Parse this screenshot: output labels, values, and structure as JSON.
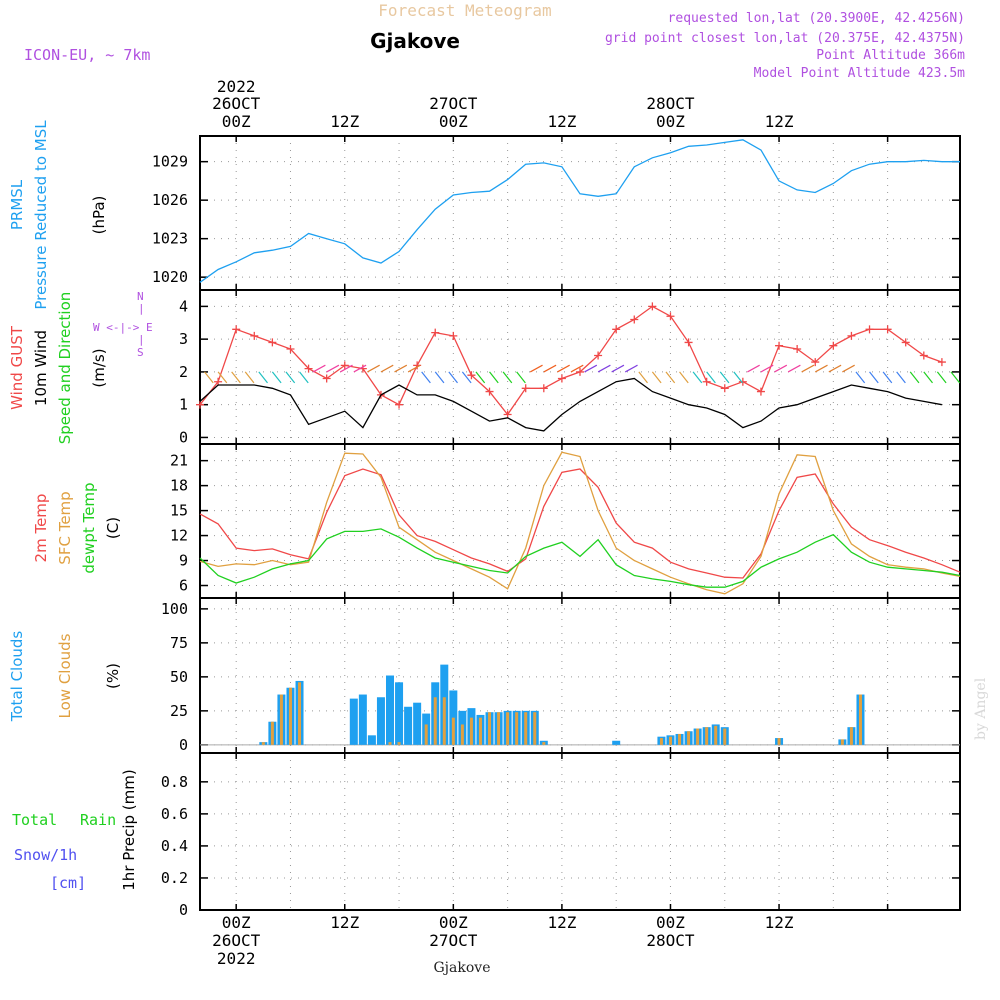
{
  "header": {
    "title": "Forecast Meteogram",
    "location": "Gjakove",
    "model": "ICON-EU, ~ 7km",
    "requested": "requested lon,lat (20.3900E, 42.4256N)",
    "grid_point": "grid point closest lon,lat (20.375E, 42.4375N)",
    "point_altitude": "Point Altitude 366m",
    "model_altitude": "Model Point Altitude 423.5m"
  },
  "time_axis": {
    "top_labels": [
      {
        "line1": "2022",
        "line2": "26OCT",
        "line3": "00Z"
      },
      {
        "line1": "",
        "line2": "",
        "line3": "12Z"
      },
      {
        "line1": "",
        "line2": "27OCT",
        "line3": "00Z"
      },
      {
        "line1": "",
        "line2": "",
        "line3": "12Z"
      },
      {
        "line1": "",
        "line2": "28OCT",
        "line3": "00Z"
      },
      {
        "line1": "",
        "line2": "",
        "line3": "12Z"
      }
    ],
    "bottom_labels": [
      {
        "line1": "00Z",
        "line2": "26OCT",
        "line3": "2022"
      },
      {
        "line1": "12Z",
        "line2": "",
        "line3": ""
      },
      {
        "line1": "00Z",
        "line2": "27OCT",
        "line3": ""
      },
      {
        "line1": "12Z",
        "line2": "",
        "line3": ""
      },
      {
        "line1": "00Z",
        "line2": "28OCT",
        "line3": ""
      },
      {
        "line1": "12Z",
        "line2": "",
        "line3": ""
      }
    ],
    "footer": "Gjakove",
    "credit": "by Angel"
  },
  "panels": {
    "pressure": {
      "labels": [
        "PRMSL",
        "Pressure Reduced to MSL"
      ],
      "unit": "(hPa)",
      "ticks": [
        1020,
        1023,
        1026,
        1029
      ]
    },
    "wind": {
      "labels": [
        "Wind GUST",
        "10m Wind",
        "Speed and Direction"
      ],
      "unit": "(m/s)",
      "ticks": [
        0,
        1,
        2,
        3,
        4
      ],
      "compass": {
        "n": "N",
        "s": "S",
        "w": "W",
        "e": "E"
      }
    },
    "temp": {
      "labels": [
        "2m Temp",
        "SFC Temp",
        "dewpt Temp"
      ],
      "unit": "(C)",
      "ticks": [
        6,
        9,
        12,
        15,
        18,
        21
      ]
    },
    "clouds": {
      "labels": [
        "Total Clouds",
        "Low Clouds"
      ],
      "unit": "(%)",
      "ticks": [
        0,
        25,
        50,
        75,
        100
      ]
    },
    "precip": {
      "labels": [
        "Total",
        "Rain",
        "Snow/1h",
        "[cm]"
      ],
      "unit": "1hr Precip (mm)",
      "ticks": [
        0,
        0.2,
        0.4,
        0.6,
        0.8
      ]
    }
  },
  "colors": {
    "pressure": "#1ea0f0",
    "gust": "#f04848",
    "wind": "#000000",
    "temp2m": "#f04848",
    "sfc": "#e0a040",
    "dewpt": "#20d020",
    "total_clouds": "#1ea0f0",
    "low_clouds": "#e0a040",
    "title": "#e8c8a0",
    "purple": "#b050e0",
    "rain": "#20d020",
    "snow": "#5050f0"
  },
  "chart_data": [
    {
      "type": "line",
      "title": "PRMSL Pressure Reduced to MSL",
      "ylabel": "hPa",
      "ylim": [
        1019,
        1031
      ],
      "x_hours": [
        -4,
        -2,
        0,
        2,
        4,
        6,
        8,
        10,
        12,
        14,
        16,
        18,
        20,
        22,
        24,
        26,
        28,
        30,
        32,
        34,
        36,
        38,
        40,
        42,
        44,
        46,
        48,
        50,
        52,
        54,
        56,
        58,
        60,
        62,
        64,
        66,
        68,
        70,
        72,
        74,
        76,
        78,
        80
      ],
      "series": [
        {
          "name": "PRMSL",
          "values": [
            1019.6,
            1020.6,
            1021.2,
            1021.9,
            1022.1,
            1022.4,
            1023.4,
            1023.0,
            1022.6,
            1021.5,
            1021.1,
            1022.0,
            1023.7,
            1025.3,
            1026.4,
            1026.6,
            1026.7,
            1027.6,
            1028.8,
            1028.9,
            1028.6,
            1026.5,
            1026.3,
            1026.5,
            1028.6,
            1029.3,
            1029.7,
            1030.2,
            1030.3,
            1030.5,
            1030.7,
            1029.9,
            1027.5,
            1026.8,
            1026.6,
            1027.3,
            1028.3,
            1028.8,
            1029.0,
            1029.0,
            1029.1,
            1029.0,
            1029.0
          ]
        }
      ]
    },
    {
      "type": "line",
      "title": "Wind GUST / 10m Wind Speed and Direction",
      "ylabel": "m/s",
      "ylim": [
        -0.2,
        4.5
      ],
      "x_hours": [
        -4,
        -2,
        0,
        2,
        4,
        6,
        8,
        10,
        12,
        14,
        16,
        18,
        20,
        22,
        24,
        26,
        28,
        30,
        32,
        34,
        36,
        38,
        40,
        42,
        44,
        46,
        48,
        50,
        52,
        54,
        56,
        58,
        60,
        62,
        64,
        66,
        68,
        70,
        72,
        74,
        76,
        78
      ],
      "series": [
        {
          "name": "Wind GUST",
          "values": [
            1.0,
            1.7,
            3.3,
            3.1,
            2.9,
            2.7,
            2.1,
            1.8,
            2.2,
            2.1,
            1.3,
            1.0,
            2.2,
            3.2,
            3.1,
            1.9,
            1.4,
            0.7,
            1.5,
            1.5,
            1.8,
            2.0,
            2.5,
            3.3,
            3.6,
            4.0,
            3.7,
            2.9,
            1.7,
            1.5,
            1.7,
            1.4,
            2.8,
            2.7,
            2.3,
            2.8,
            3.1,
            3.3,
            3.3,
            2.9,
            2.5,
            2.3
          ]
        },
        {
          "name": "10m Wind",
          "values": [
            1.1,
            1.6,
            1.6,
            1.6,
            1.5,
            1.3,
            0.4,
            0.6,
            0.8,
            0.3,
            1.3,
            1.6,
            1.3,
            1.3,
            1.1,
            0.8,
            0.5,
            0.6,
            0.3,
            0.2,
            0.7,
            1.1,
            1.4,
            1.7,
            1.8,
            1.4,
            1.2,
            1.0,
            0.9,
            0.7,
            0.3,
            0.5,
            0.9,
            1.0,
            1.2,
            1.4,
            1.6,
            1.5,
            1.4,
            1.2,
            1.1,
            1.0
          ]
        }
      ]
    },
    {
      "type": "line",
      "title": "2m Temp / SFC Temp / dewpt Temp",
      "ylabel": "C",
      "ylim": [
        4.5,
        23
      ],
      "x_hours": [
        -4,
        -2,
        0,
        2,
        4,
        6,
        8,
        10,
        12,
        14,
        16,
        18,
        20,
        22,
        24,
        26,
        28,
        30,
        32,
        34,
        36,
        38,
        40,
        42,
        44,
        46,
        48,
        50,
        52,
        54,
        56,
        58,
        60,
        62,
        64,
        66,
        68,
        70,
        72,
        74,
        76,
        78,
        80
      ],
      "series": [
        {
          "name": "2m Temp",
          "values": [
            14.6,
            13.4,
            10.5,
            10.2,
            10.4,
            9.7,
            9.2,
            14.8,
            19.2,
            20.0,
            19.3,
            14.5,
            12.0,
            11.3,
            10.3,
            9.3,
            8.6,
            7.7,
            9.2,
            15.5,
            19.6,
            20.0,
            17.8,
            13.5,
            11.2,
            10.5,
            8.8,
            8.0,
            7.5,
            7.0,
            6.9,
            9.8,
            15.0,
            19.0,
            19.4,
            15.8,
            13.0,
            11.5,
            10.8,
            10.0,
            9.3,
            8.5,
            7.6
          ]
        },
        {
          "name": "SFC Temp",
          "values": [
            8.9,
            8.3,
            8.6,
            8.5,
            9.0,
            8.5,
            8.8,
            16.0,
            21.9,
            21.8,
            19.0,
            13.0,
            11.5,
            10.0,
            9.0,
            8.0,
            7.0,
            5.6,
            10.5,
            18.0,
            22.0,
            21.5,
            15.0,
            10.5,
            9.0,
            8.0,
            7.0,
            6.2,
            5.5,
            5.0,
            6.2,
            9.5,
            17.0,
            21.7,
            21.5,
            15.0,
            11.0,
            9.5,
            8.5,
            8.2,
            8.0,
            7.5,
            7.1
          ]
        },
        {
          "name": "dewpt Temp",
          "values": [
            9.3,
            7.2,
            6.3,
            7.0,
            8.0,
            8.6,
            9.0,
            11.6,
            12.5,
            12.5,
            12.8,
            11.8,
            10.5,
            9.3,
            8.8,
            8.3,
            7.8,
            7.5,
            9.5,
            10.5,
            11.2,
            9.5,
            11.5,
            8.5,
            7.2,
            6.8,
            6.5,
            6.1,
            5.8,
            5.8,
            6.5,
            8.2,
            9.2,
            10.0,
            11.2,
            12.1,
            10.0,
            8.8,
            8.2,
            8.0,
            7.8,
            7.6,
            7.2
          ]
        }
      ]
    },
    {
      "type": "bar",
      "title": "Total Clouds / Low Clouds",
      "ylabel": "%",
      "ylim": [
        -6,
        108
      ],
      "x_hours": [
        3,
        4,
        5,
        6,
        7,
        8,
        13,
        14,
        15,
        16,
        17,
        18,
        19,
        20,
        21,
        22,
        23,
        24,
        25,
        26,
        27,
        28,
        29,
        30,
        31,
        32,
        33,
        34,
        35,
        42,
        47,
        48,
        49,
        50,
        51,
        52,
        53,
        54,
        55,
        60,
        67,
        68,
        69
      ],
      "series": [
        {
          "name": "Total Clouds",
          "values": [
            2,
            17,
            37,
            42,
            47,
            0,
            34,
            37,
            7,
            35,
            51,
            46,
            28,
            31,
            23,
            46,
            59,
            40,
            25,
            27,
            22,
            24,
            24,
            25,
            25,
            25,
            25,
            3,
            0,
            3,
            6,
            7,
            8,
            10,
            12,
            13,
            15,
            13,
            0,
            5,
            4,
            13,
            37
          ]
        },
        {
          "name": "Low Clouds",
          "values": [
            2,
            17,
            37,
            42,
            46,
            0,
            0,
            0,
            0,
            0,
            2,
            2,
            0,
            0,
            15,
            35,
            35,
            20,
            15,
            20,
            20,
            24,
            24,
            24,
            24,
            24,
            24,
            2,
            0,
            0,
            5,
            6,
            8,
            10,
            12,
            13,
            14,
            12,
            0,
            5,
            4,
            13,
            37
          ]
        }
      ]
    },
    {
      "type": "bar",
      "title": "1hr Precip",
      "ylabel": "1hr Precip (mm)",
      "ylim": [
        0,
        0.98
      ],
      "series": [
        {
          "name": "Total Rain",
          "values": []
        },
        {
          "name": "Snow/1h",
          "values": []
        }
      ]
    }
  ]
}
